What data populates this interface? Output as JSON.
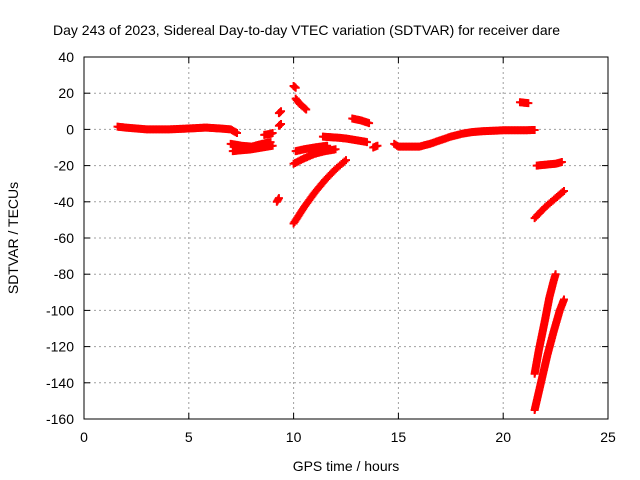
{
  "chart_data": {
    "type": "scatter",
    "title": "Day 243 of 2023, Sidereal Day-to-day VTEC variation (SDTVAR) for receiver dare",
    "xlabel": "GPS time / hours",
    "ylabel": "SDTVAR / TECUs",
    "xlim": [
      0,
      25
    ],
    "ylim": [
      -160,
      40
    ],
    "xticks": [
      0,
      5,
      10,
      15,
      20,
      25
    ],
    "yticks": [
      40,
      20,
      0,
      -20,
      -40,
      -60,
      -80,
      -100,
      -120,
      -140,
      -160
    ],
    "grid": true,
    "marker": "plus",
    "color": "#ff0000",
    "series": [
      {
        "segments": [
          [
            [
              1.6,
              1.5
            ],
            [
              2.0,
              1.0
            ],
            [
              3.0,
              0.0
            ],
            [
              4.0,
              0.0
            ],
            [
              5.0,
              0.5
            ],
            [
              5.8,
              1.0
            ],
            [
              6.5,
              0.5
            ],
            [
              7.0,
              0.0
            ],
            [
              7.3,
              -2.0
            ]
          ],
          [
            [
              7.0,
              -8.0
            ],
            [
              7.5,
              -9.0
            ],
            [
              8.0,
              -9.5
            ],
            [
              8.5,
              -8.0
            ],
            [
              8.9,
              -7.0
            ]
          ],
          [
            [
              7.1,
              -12.0
            ],
            [
              7.5,
              -11.5
            ],
            [
              8.0,
              -11.0
            ],
            [
              8.5,
              -10.0
            ],
            [
              9.0,
              -9.0
            ]
          ],
          [
            [
              8.6,
              -3.0
            ],
            [
              8.9,
              -2.5
            ],
            [
              9.0,
              -2.0
            ]
          ],
          [
            [
              9.2,
              -40.0
            ],
            [
              9.3,
              -38.0
            ]
          ],
          [
            [
              9.3,
              2.0
            ],
            [
              9.4,
              3.0
            ]
          ],
          [
            [
              9.3,
              9.0
            ],
            [
              9.4,
              10.0
            ]
          ],
          [
            [
              10.0,
              24.0
            ],
            [
              10.1,
              23.0
            ]
          ],
          [
            [
              10.1,
              17.0
            ],
            [
              10.3,
              14.0
            ],
            [
              10.5,
              12.0
            ],
            [
              10.6,
              11.0
            ]
          ],
          [
            [
              10.0,
              -52.0
            ],
            [
              10.5,
              -43.0
            ],
            [
              11.0,
              -35.0
            ],
            [
              11.5,
              -28.0
            ],
            [
              12.0,
              -22.0
            ],
            [
              12.5,
              -17.0
            ]
          ],
          [
            [
              10.0,
              -19.0
            ],
            [
              10.5,
              -16.0
            ],
            [
              11.0,
              -13.5
            ],
            [
              11.5,
              -12.0
            ],
            [
              12.0,
              -11.0
            ]
          ],
          [
            [
              10.1,
              -12.0
            ],
            [
              10.5,
              -11.0
            ],
            [
              11.0,
              -10.0
            ],
            [
              11.6,
              -9.0
            ]
          ],
          [
            [
              11.4,
              -4.0
            ],
            [
              12.0,
              -4.5
            ],
            [
              12.5,
              -5.0
            ],
            [
              13.0,
              -6.0
            ],
            [
              13.5,
              -7.0
            ]
          ],
          [
            [
              12.8,
              6.0
            ],
            [
              13.2,
              5.0
            ],
            [
              13.6,
              3.5
            ]
          ],
          [
            [
              13.8,
              -10.0
            ],
            [
              14.0,
              -9.0
            ]
          ],
          [
            [
              14.8,
              -8.0
            ],
            [
              15.0,
              -9.5
            ],
            [
              16.0,
              -9.5
            ],
            [
              16.5,
              -8.0
            ],
            [
              17.0,
              -6.0
            ],
            [
              17.5,
              -4.0
            ],
            [
              18.0,
              -2.5
            ],
            [
              18.5,
              -1.5
            ],
            [
              19.0,
              -1.0
            ],
            [
              20.0,
              -0.5
            ],
            [
              21.0,
              -0.5
            ],
            [
              21.5,
              -0.3
            ]
          ],
          [
            [
              20.8,
              15.0
            ],
            [
              21.2,
              14.5
            ]
          ],
          [
            [
              21.6,
              -20.0
            ],
            [
              22.0,
              -19.5
            ],
            [
              22.5,
              -19.0
            ],
            [
              22.8,
              -18.0
            ]
          ],
          [
            [
              21.5,
              -49.0
            ],
            [
              22.0,
              -43.0
            ],
            [
              22.5,
              -38.0
            ],
            [
              22.9,
              -34.0
            ]
          ],
          [
            [
              21.5,
              -135.0
            ],
            [
              21.7,
              -122.0
            ],
            [
              22.0,
              -105.0
            ],
            [
              22.2,
              -93.0
            ],
            [
              22.4,
              -84.0
            ],
            [
              22.5,
              -80.0
            ]
          ],
          [
            [
              21.5,
              -155.0
            ],
            [
              21.8,
              -140.0
            ],
            [
              22.1,
              -125.0
            ],
            [
              22.4,
              -112.0
            ],
            [
              22.7,
              -100.0
            ],
            [
              22.9,
              -94.0
            ]
          ]
        ]
      }
    ]
  }
}
